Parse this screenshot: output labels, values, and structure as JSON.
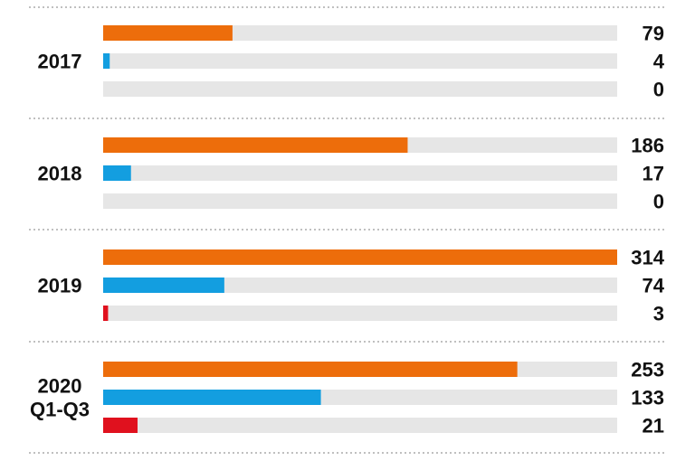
{
  "chart_data": {
    "type": "bar",
    "orientation": "horizontal",
    "categories": [
      "2017",
      "2018",
      "2019",
      "2020 Q1-Q3"
    ],
    "category_lines": [
      [
        "2017"
      ],
      [
        "2018"
      ],
      [
        "2019"
      ],
      [
        "2020",
        "Q1-Q3"
      ]
    ],
    "series": [
      {
        "values": [
          79,
          186,
          314,
          253
        ],
        "color": "#ed6d0b"
      },
      {
        "values": [
          4,
          17,
          74,
          133
        ],
        "color": "#139ee0"
      },
      {
        "values": [
          0,
          0,
          3,
          21
        ],
        "color": "#e0111e"
      }
    ],
    "xlim": [
      0,
      314
    ],
    "track_color": "#e6e6e6",
    "grid": false,
    "legend": "none",
    "title": "",
    "xlabel": "",
    "ylabel": ""
  }
}
